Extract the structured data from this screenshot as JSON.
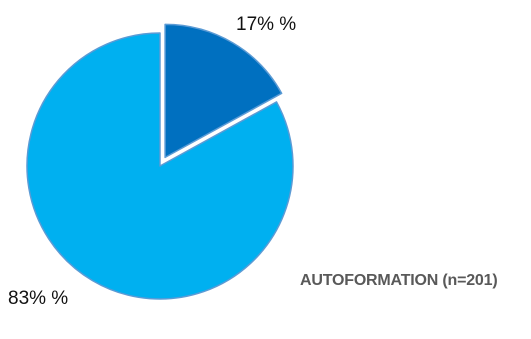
{
  "chart_data": {
    "type": "pie",
    "title": "AUTOFORMATION (n=201)",
    "slices": [
      {
        "value": 17,
        "label": "17% %",
        "color": "#0070c0",
        "exploded": true
      },
      {
        "value": 83,
        "label": "83% %",
        "color": "#00b0f0",
        "exploded": false
      }
    ],
    "start_angle": "12 o'clock",
    "direction": "clockwise"
  }
}
